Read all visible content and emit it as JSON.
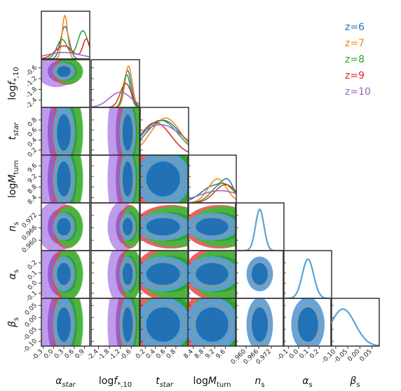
{
  "chart_data": {
    "type": "corner",
    "parameters": [
      {
        "label": "α",
        "sub": "star",
        "ticks": [
          "-0.3",
          "0.0",
          "0.3",
          "0.6",
          "0.9"
        ],
        "range": [
          -0.35,
          1.05
        ]
      },
      {
        "label": "log",
        "italic": "f",
        "sub": "*,10",
        "ticks": [
          "-2.4",
          "-1.8",
          "-1.2",
          "-0.6"
        ],
        "range": [
          -2.8,
          -0.15
        ]
      },
      {
        "label": "t",
        "sub": "star",
        "ticks": [
          "0.2",
          "0.4",
          "0.6",
          "0.8"
        ],
        "range": [
          0.1,
          1.05
        ]
      },
      {
        "label": "log",
        "italic": "M",
        "sub": "turn",
        "ticks": [
          "8.4",
          "8.8",
          "9.2",
          "9.6"
        ],
        "range": [
          8.2,
          10.0
        ]
      },
      {
        "label": "n",
        "sub": "s",
        "ticks": [
          "0.960",
          "0.966",
          "0.972"
        ],
        "range": [
          0.955,
          0.978
        ]
      },
      {
        "label": "α",
        "sub": "s",
        "ticks": [
          "-0.1",
          "0.0",
          "0.1",
          "0.2"
        ],
        "range": [
          -0.15,
          0.32
        ]
      },
      {
        "label": "β",
        "sub": "s",
        "ticks": [
          "-0.10",
          "-0.05",
          "0.00",
          "0.05"
        ],
        "range": [
          -0.12,
          0.08
        ]
      }
    ],
    "series": [
      {
        "name": "z=6",
        "color": "#1f77b4",
        "fill_inner": "#1f6fb2",
        "fill_outer": "#5aa0dd"
      },
      {
        "name": "z=7",
        "color": "#ff7f0e"
      },
      {
        "name": "z=8",
        "color": "#2ca02c",
        "fill_inner": "#2ca02c",
        "fill_outer": "#3dbb3d"
      },
      {
        "name": "z=9",
        "color": "#d62728",
        "fill_inner": "#d62728",
        "fill_outer": "#e8474a"
      },
      {
        "name": "z=10",
        "color": "#9467bd",
        "fill_inner": "#9155c9",
        "fill_outer": "#b38ae8"
      }
    ],
    "marginals_approx": [
      [
        {
          "series": "z=6",
          "peaks": [
            [
              0.33,
              0.12,
              0.75
            ]
          ]
        },
        {
          "series": "z=7",
          "peaks": [
            [
              0.33,
              0.08,
              1.0
            ]
          ]
        },
        {
          "series": "z=8",
          "peaks": [
            [
              0.25,
              0.15,
              0.45
            ],
            [
              0.85,
              0.15,
              0.65
            ]
          ]
        },
        {
          "series": "z=9",
          "peaks": [
            [
              0.3,
              0.25,
              0.3
            ],
            [
              0.95,
              0.1,
              0.45
            ]
          ]
        },
        {
          "series": "z=10",
          "peaks": [
            [
              0.3,
              0.5,
              0.15
            ]
          ]
        }
      ],
      [
        {
          "series": "z=6",
          "peaks": [
            [
              -0.8,
              0.2,
              0.85
            ]
          ]
        },
        {
          "series": "z=7",
          "peaks": [
            [
              -0.75,
              0.2,
              0.95
            ]
          ]
        },
        {
          "series": "z=8",
          "peaks": [
            [
              -0.85,
              0.2,
              0.75
            ]
          ]
        },
        {
          "series": "z=9",
          "peaks": [
            [
              -0.9,
              0.3,
              0.55
            ]
          ]
        },
        {
          "series": "z=10",
          "peaks": [
            [
              -1.2,
              0.6,
              0.35
            ]
          ]
        }
      ],
      [
        {
          "series": "z=6",
          "peaks": [
            [
              0.55,
              0.35,
              0.8
            ]
          ]
        },
        {
          "series": "z=7",
          "peaks": [
            [
              0.6,
              0.3,
              0.85
            ]
          ]
        },
        {
          "series": "z=8",
          "peaks": [
            [
              0.5,
              0.35,
              0.8
            ]
          ]
        },
        {
          "series": "z=9",
          "peaks": [
            [
              0.4,
              0.3,
              0.75
            ]
          ]
        },
        {
          "series": "z=10",
          "peaks": [
            [
              0.5,
              0.45,
              0.7
            ]
          ]
        }
      ],
      [
        {
          "series": "z=6",
          "peaks": [
            [
              9.2,
              0.5,
              0.4
            ],
            [
              9.7,
              0.2,
              0.3
            ]
          ]
        },
        {
          "series": "z=7",
          "peaks": [
            [
              9.3,
              0.35,
              0.55
            ]
          ]
        },
        {
          "series": "z=8",
          "peaks": [
            [
              9.5,
              0.4,
              0.45
            ]
          ]
        },
        {
          "series": "z=9",
          "peaks": [
            [
              9.6,
              0.4,
              0.42
            ]
          ]
        },
        {
          "series": "z=10",
          "peaks": [
            [
              9.4,
              0.8,
              0.28
            ]
          ]
        }
      ],
      [
        {
          "series": "z=6",
          "peaks": [
            [
              0.9665,
              0.002,
              0.95
            ]
          ]
        }
      ],
      [
        {
          "series": "z=6",
          "peaks": [
            [
              0.09,
              0.055,
              0.9
            ]
          ]
        }
      ],
      [
        {
          "series": "z=6",
          "peaks": [
            [
              -0.07,
              0.05,
              0.85
            ]
          ]
        }
      ]
    ]
  },
  "legend": [
    {
      "label": "z=6",
      "color": "#1f77b4"
    },
    {
      "label": "z=7",
      "color": "#ff7f0e"
    },
    {
      "label": "z=8",
      "color": "#2ca02c"
    },
    {
      "label": "z=9",
      "color": "#d62728"
    },
    {
      "label": "z=10",
      "color": "#9467bd"
    }
  ]
}
